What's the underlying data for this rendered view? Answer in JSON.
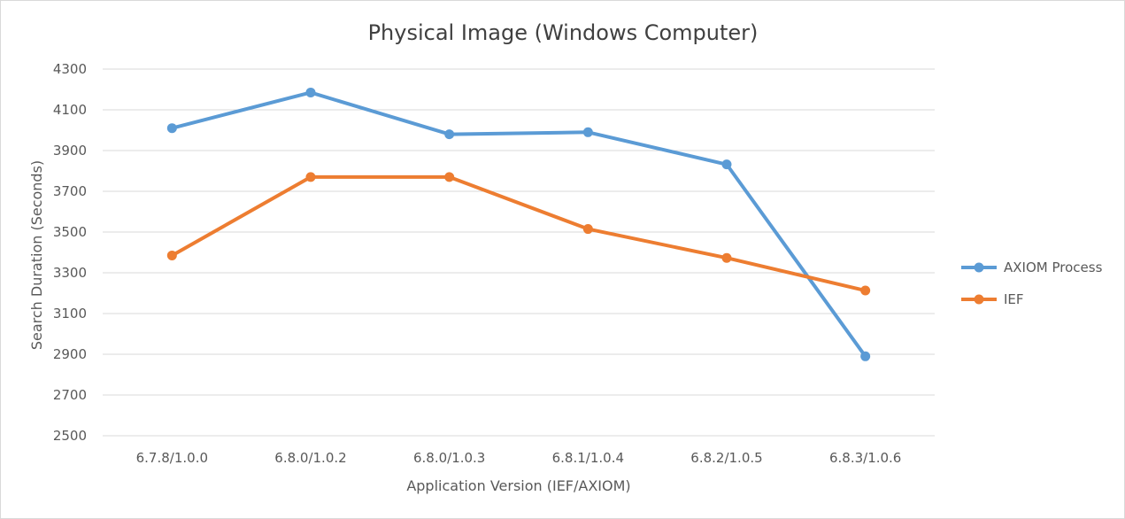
{
  "chart_data": {
    "type": "line",
    "title": "Physical Image (Windows Computer)",
    "xlabel": "Application Version (IEF/AXIOM)",
    "ylabel": "Search Duration (Seconds)",
    "categories": [
      "6.7.8/1.0.0",
      "6.8.0/1.0.2",
      "6.8.0/1.0.3",
      "6.8.1/1.0.4",
      "6.8.2/1.0.5",
      "6.8.3/1.0.6"
    ],
    "ylim": [
      2500,
      4300
    ],
    "yticks": [
      "2500",
      "2700",
      "2900",
      "3100",
      "3300",
      "3500",
      "3700",
      "3900",
      "4100",
      "4300"
    ],
    "grid": "horizontal",
    "legend_position": "right",
    "series": [
      {
        "name": "AXIOM Process",
        "color": "#5b9bd5",
        "values": [
          4010,
          4185,
          3980,
          3990,
          3832,
          2890
        ]
      },
      {
        "name": "IEF",
        "color": "#ed7d31",
        "values": [
          3385,
          3770,
          3770,
          3515,
          3373,
          3213
        ]
      }
    ]
  }
}
